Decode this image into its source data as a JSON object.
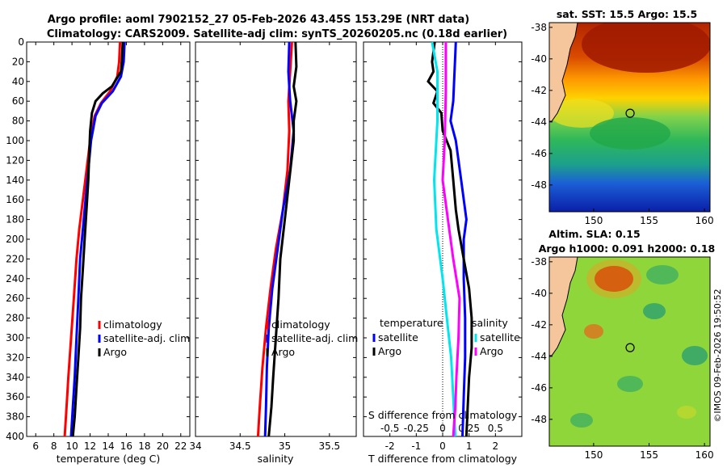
{
  "header": {
    "title_line1": "Argo profile: aoml 7902152_27 05-Feb-2026 43.45S 153.29E (NRT data)",
    "title_line2": "Climatology: CARS2009. Satellite-adj clim: synTS_20260205.nc (0.18d earlier)"
  },
  "credit": "©IMOS 09-Feb-2026 19:50:52",
  "colors": {
    "climatology": "#ff0000",
    "satellite": "#0000ff",
    "argo": "#000000",
    "sat_salinity": "#00e5ee",
    "argo_salinity": "#ff00ff"
  },
  "chart_data": [
    {
      "type": "line",
      "id": "temperature",
      "xlabel": "temperature (deg C)",
      "xlim": [
        5,
        23
      ],
      "xticks": [
        6,
        8,
        10,
        12,
        14,
        16,
        18,
        20,
        22
      ],
      "ylim": [
        0,
        400
      ],
      "yticks": [
        0,
        20,
        40,
        60,
        80,
        100,
        120,
        140,
        160,
        180,
        200,
        220,
        240,
        260,
        280,
        300,
        320,
        340,
        360,
        380,
        400
      ],
      "legend": {
        "items": [
          "climatology",
          "satellite-adj. clim",
          "Argo"
        ],
        "position": "center-right"
      },
      "series": [
        {
          "name": "climatology",
          "color": "#ff0000",
          "points": [
            [
              15.3,
              0
            ],
            [
              15.2,
              20
            ],
            [
              15.0,
              35
            ],
            [
              14.2,
              50
            ],
            [
              13.2,
              62
            ],
            [
              12.5,
              75
            ],
            [
              12.0,
              100
            ],
            [
              11.6,
              130
            ],
            [
              11.2,
              160
            ],
            [
              10.8,
              190
            ],
            [
              10.5,
              220
            ],
            [
              10.2,
              260
            ],
            [
              9.9,
              300
            ],
            [
              9.6,
              340
            ],
            [
              9.4,
              370
            ],
            [
              9.2,
              400
            ]
          ]
        },
        {
          "name": "satellite-adj. clim",
          "color": "#0000ff",
          "points": [
            [
              15.8,
              0
            ],
            [
              15.7,
              20
            ],
            [
              15.4,
              35
            ],
            [
              14.5,
              50
            ],
            [
              13.3,
              62
            ],
            [
              12.6,
              75
            ],
            [
              12.1,
              100
            ],
            [
              11.8,
              130
            ],
            [
              11.5,
              160
            ],
            [
              11.2,
              190
            ],
            [
              10.9,
              220
            ],
            [
              10.7,
              260
            ],
            [
              10.5,
              300
            ],
            [
              10.3,
              340
            ],
            [
              10.1,
              370
            ],
            [
              9.9,
              400
            ]
          ]
        },
        {
          "name": "Argo",
          "color": "#000000",
          "points": [
            [
              15.6,
              0
            ],
            [
              15.5,
              20
            ],
            [
              15.4,
              30
            ],
            [
              14.4,
              45
            ],
            [
              13.4,
              52
            ],
            [
              12.6,
              60
            ],
            [
              12.2,
              72
            ],
            [
              12.0,
              90
            ],
            [
              11.9,
              115
            ],
            [
              11.8,
              140
            ],
            [
              11.6,
              170
            ],
            [
              11.4,
              200
            ],
            [
              11.2,
              230
            ],
            [
              11.0,
              260
            ],
            [
              10.9,
              290
            ],
            [
              10.7,
              320
            ],
            [
              10.5,
              350
            ],
            [
              10.3,
              380
            ],
            [
              10.1,
              400
            ]
          ]
        }
      ]
    },
    {
      "type": "line",
      "id": "salinity",
      "xlabel": "salinity",
      "xlim": [
        34,
        35.8
      ],
      "xticks": [
        34,
        34.5,
        35,
        35.5
      ],
      "xticklabels": [
        "34",
        "34.5",
        "35",
        "35.5"
      ],
      "ylim": [
        0,
        400
      ],
      "legend": {
        "items": [
          "climatology",
          "satellite-adj. clim",
          "Argo"
        ],
        "position": "center-right"
      },
      "series": [
        {
          "name": "climatology",
          "color": "#ff0000",
          "points": [
            [
              35.08,
              0
            ],
            [
              35.06,
              30
            ],
            [
              35.04,
              60
            ],
            [
              35.05,
              90
            ],
            [
              35.03,
              130
            ],
            [
              34.98,
              170
            ],
            [
              34.9,
              210
            ],
            [
              34.84,
              250
            ],
            [
              34.79,
              290
            ],
            [
              34.75,
              330
            ],
            [
              34.72,
              370
            ],
            [
              34.7,
              400
            ]
          ]
        },
        {
          "name": "satellite-adj. clim",
          "color": "#0000ff",
          "points": [
            [
              35.05,
              0
            ],
            [
              35.04,
              30
            ],
            [
              35.06,
              60
            ],
            [
              35.1,
              90
            ],
            [
              35.06,
              130
            ],
            [
              34.98,
              170
            ],
            [
              34.92,
              210
            ],
            [
              34.86,
              250
            ],
            [
              34.82,
              290
            ],
            [
              34.8,
              330
            ],
            [
              34.79,
              370
            ],
            [
              34.78,
              400
            ]
          ]
        },
        {
          "name": "Argo",
          "color": "#000000",
          "points": [
            [
              35.12,
              0
            ],
            [
              35.13,
              25
            ],
            [
              35.1,
              45
            ],
            [
              35.13,
              60
            ],
            [
              35.1,
              80
            ],
            [
              35.1,
              100
            ],
            [
              35.05,
              140
            ],
            [
              35.0,
              180
            ],
            [
              34.95,
              220
            ],
            [
              34.93,
              260
            ],
            [
              34.9,
              300
            ],
            [
              34.87,
              340
            ],
            [
              34.85,
              370
            ],
            [
              34.82,
              400
            ]
          ]
        }
      ]
    },
    {
      "type": "line",
      "id": "difference",
      "xlabel": "T difference from climatology",
      "xlim": [
        -3,
        3
      ],
      "xticks": [
        -2,
        -1,
        0,
        1,
        2
      ],
      "top_axis_label": "S difference from climatology",
      "top_ticks": [
        -0.5,
        -0.25,
        0,
        0.25,
        0.5
      ],
      "top_ticklabels": [
        "-0.5",
        "-0.25",
        "0",
        "0.25",
        "0.5"
      ],
      "ylim": [
        0,
        400
      ],
      "legend_temperature": {
        "title": "temperature",
        "items": [
          "satellite",
          "Argo"
        ]
      },
      "legend_salinity": {
        "title": "salinity",
        "items": [
          "satellite",
          "Argo"
        ]
      },
      "series": [
        {
          "name": "T satellite",
          "color": "#0000ff",
          "points": [
            [
              0.5,
              0
            ],
            [
              0.45,
              30
            ],
            [
              0.4,
              60
            ],
            [
              0.3,
              80
            ],
            [
              0.5,
              100
            ],
            [
              0.7,
              140
            ],
            [
              0.9,
              180
            ],
            [
              0.8,
              200
            ],
            [
              0.8,
              240
            ],
            [
              0.85,
              280
            ],
            [
              0.85,
              320
            ],
            [
              0.8,
              360
            ],
            [
              0.75,
              400
            ]
          ]
        },
        {
          "name": "T Argo",
          "color": "#000000",
          "points": [
            [
              -0.3,
              0
            ],
            [
              -0.4,
              20
            ],
            [
              -0.35,
              30
            ],
            [
              -0.55,
              40
            ],
            [
              -0.2,
              50
            ],
            [
              -0.35,
              62
            ],
            [
              -0.05,
              72
            ],
            [
              0.0,
              90
            ],
            [
              0.3,
              110
            ],
            [
              0.4,
              140
            ],
            [
              0.5,
              170
            ],
            [
              0.6,
              190
            ],
            [
              0.8,
              220
            ],
            [
              1.0,
              250
            ],
            [
              1.1,
              280
            ],
            [
              1.1,
              310
            ],
            [
              1.0,
              340
            ],
            [
              0.95,
              370
            ],
            [
              0.9,
              400
            ]
          ]
        },
        {
          "name": "S satellite",
          "color": "#00e5ee",
          "points": [
            [
              -0.1,
              0
            ],
            [
              -0.05,
              30
            ],
            [
              -0.05,
              80
            ],
            [
              -0.08,
              140
            ],
            [
              -0.06,
              190
            ],
            [
              0.0,
              240
            ],
            [
              0.04,
              280
            ],
            [
              0.08,
              320
            ],
            [
              0.1,
              360
            ],
            [
              0.12,
              400
            ]
          ]
        },
        {
          "name": "S Argo",
          "color": "#ff00ff",
          "points": [
            [
              0.03,
              0
            ],
            [
              0.03,
              50
            ],
            [
              0.02,
              100
            ],
            [
              0.0,
              140
            ],
            [
              0.05,
              180
            ],
            [
              0.1,
              220
            ],
            [
              0.16,
              260
            ],
            [
              0.15,
              300
            ],
            [
              0.13,
              340
            ],
            [
              0.12,
              370
            ],
            [
              0.1,
              400
            ]
          ]
        }
      ]
    }
  ],
  "maps": {
    "sst": {
      "title": "sat. SST: 15.5 Argo: 15.5",
      "xticks": [
        150,
        155,
        160
      ],
      "xlim": [
        146,
        160.5
      ],
      "yticks": [
        -38,
        -40,
        -42,
        -44,
        -46,
        -48
      ],
      "ylim": [
        -37.7,
        -49.7
      ],
      "argo_position": [
        153.29,
        -43.45
      ]
    },
    "sla": {
      "title_line1": "Altim. SLA: 0.15",
      "title_line2": "Argo h1000: 0.091 h2000: 0.18",
      "xticks": [
        150,
        155,
        160
      ],
      "xlim": [
        146,
        160.5
      ],
      "yticks": [
        -38,
        -40,
        -42,
        -44,
        -46,
        -48
      ],
      "ylim": [
        -37.7,
        -49.7
      ],
      "argo_position": [
        153.29,
        -43.45
      ]
    }
  }
}
